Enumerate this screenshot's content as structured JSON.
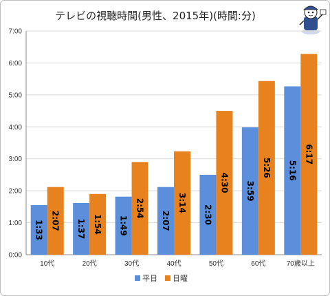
{
  "chart_data": {
    "type": "bar",
    "title": "テレビの視聴時間(男性、2015年)(時間:分)",
    "categories": [
      "10代",
      "20代",
      "30代",
      "40代",
      "50代",
      "60代",
      "70歳以上"
    ],
    "y_ticks": [
      "0:00",
      "1:00",
      "2:00",
      "3:00",
      "4:00",
      "5:00",
      "6:00",
      "7:00"
    ],
    "ylim": [
      0,
      420
    ],
    "y_unit": "minutes",
    "grid": true,
    "legend_position": "bottom",
    "series": [
      {
        "name": "平日",
        "color": "#5B8FDB",
        "values": [
          93,
          97,
          109,
          127,
          150,
          239,
          316
        ],
        "labels": [
          "1:33",
          "1:37",
          "1:49",
          "2:07",
          "2:30",
          "3:59",
          "5:16"
        ]
      },
      {
        "name": "日曜",
        "color": "#E8821E",
        "values": [
          127,
          114,
          174,
          194,
          270,
          326,
          377
        ],
        "labels": [
          "2:07",
          "1:54",
          "2:54",
          "3:14",
          "4:30",
          "5:26",
          "6:17"
        ]
      }
    ]
  },
  "mascot": {
    "icon": "mascot-icon"
  }
}
